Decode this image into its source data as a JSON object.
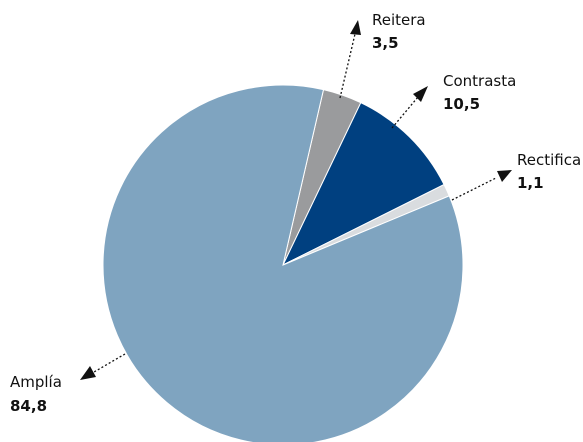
{
  "chart_data": {
    "type": "pie",
    "slices": [
      {
        "label": "Reitera",
        "value": 3.5,
        "value_text": "3,5",
        "color": "#9a9b9d"
      },
      {
        "label": "Contrasta",
        "value": 10.5,
        "value_text": "10,5",
        "color": "#004080"
      },
      {
        "label": "Rectifica",
        "value": 1.1,
        "value_text": "1,1",
        "color": "#d9dcdf"
      },
      {
        "label": "Amplía",
        "value": 84.8,
        "value_text": "84,8",
        "color": "#7fa4c0"
      }
    ],
    "labels_style": "callout-arrows-dotted"
  }
}
